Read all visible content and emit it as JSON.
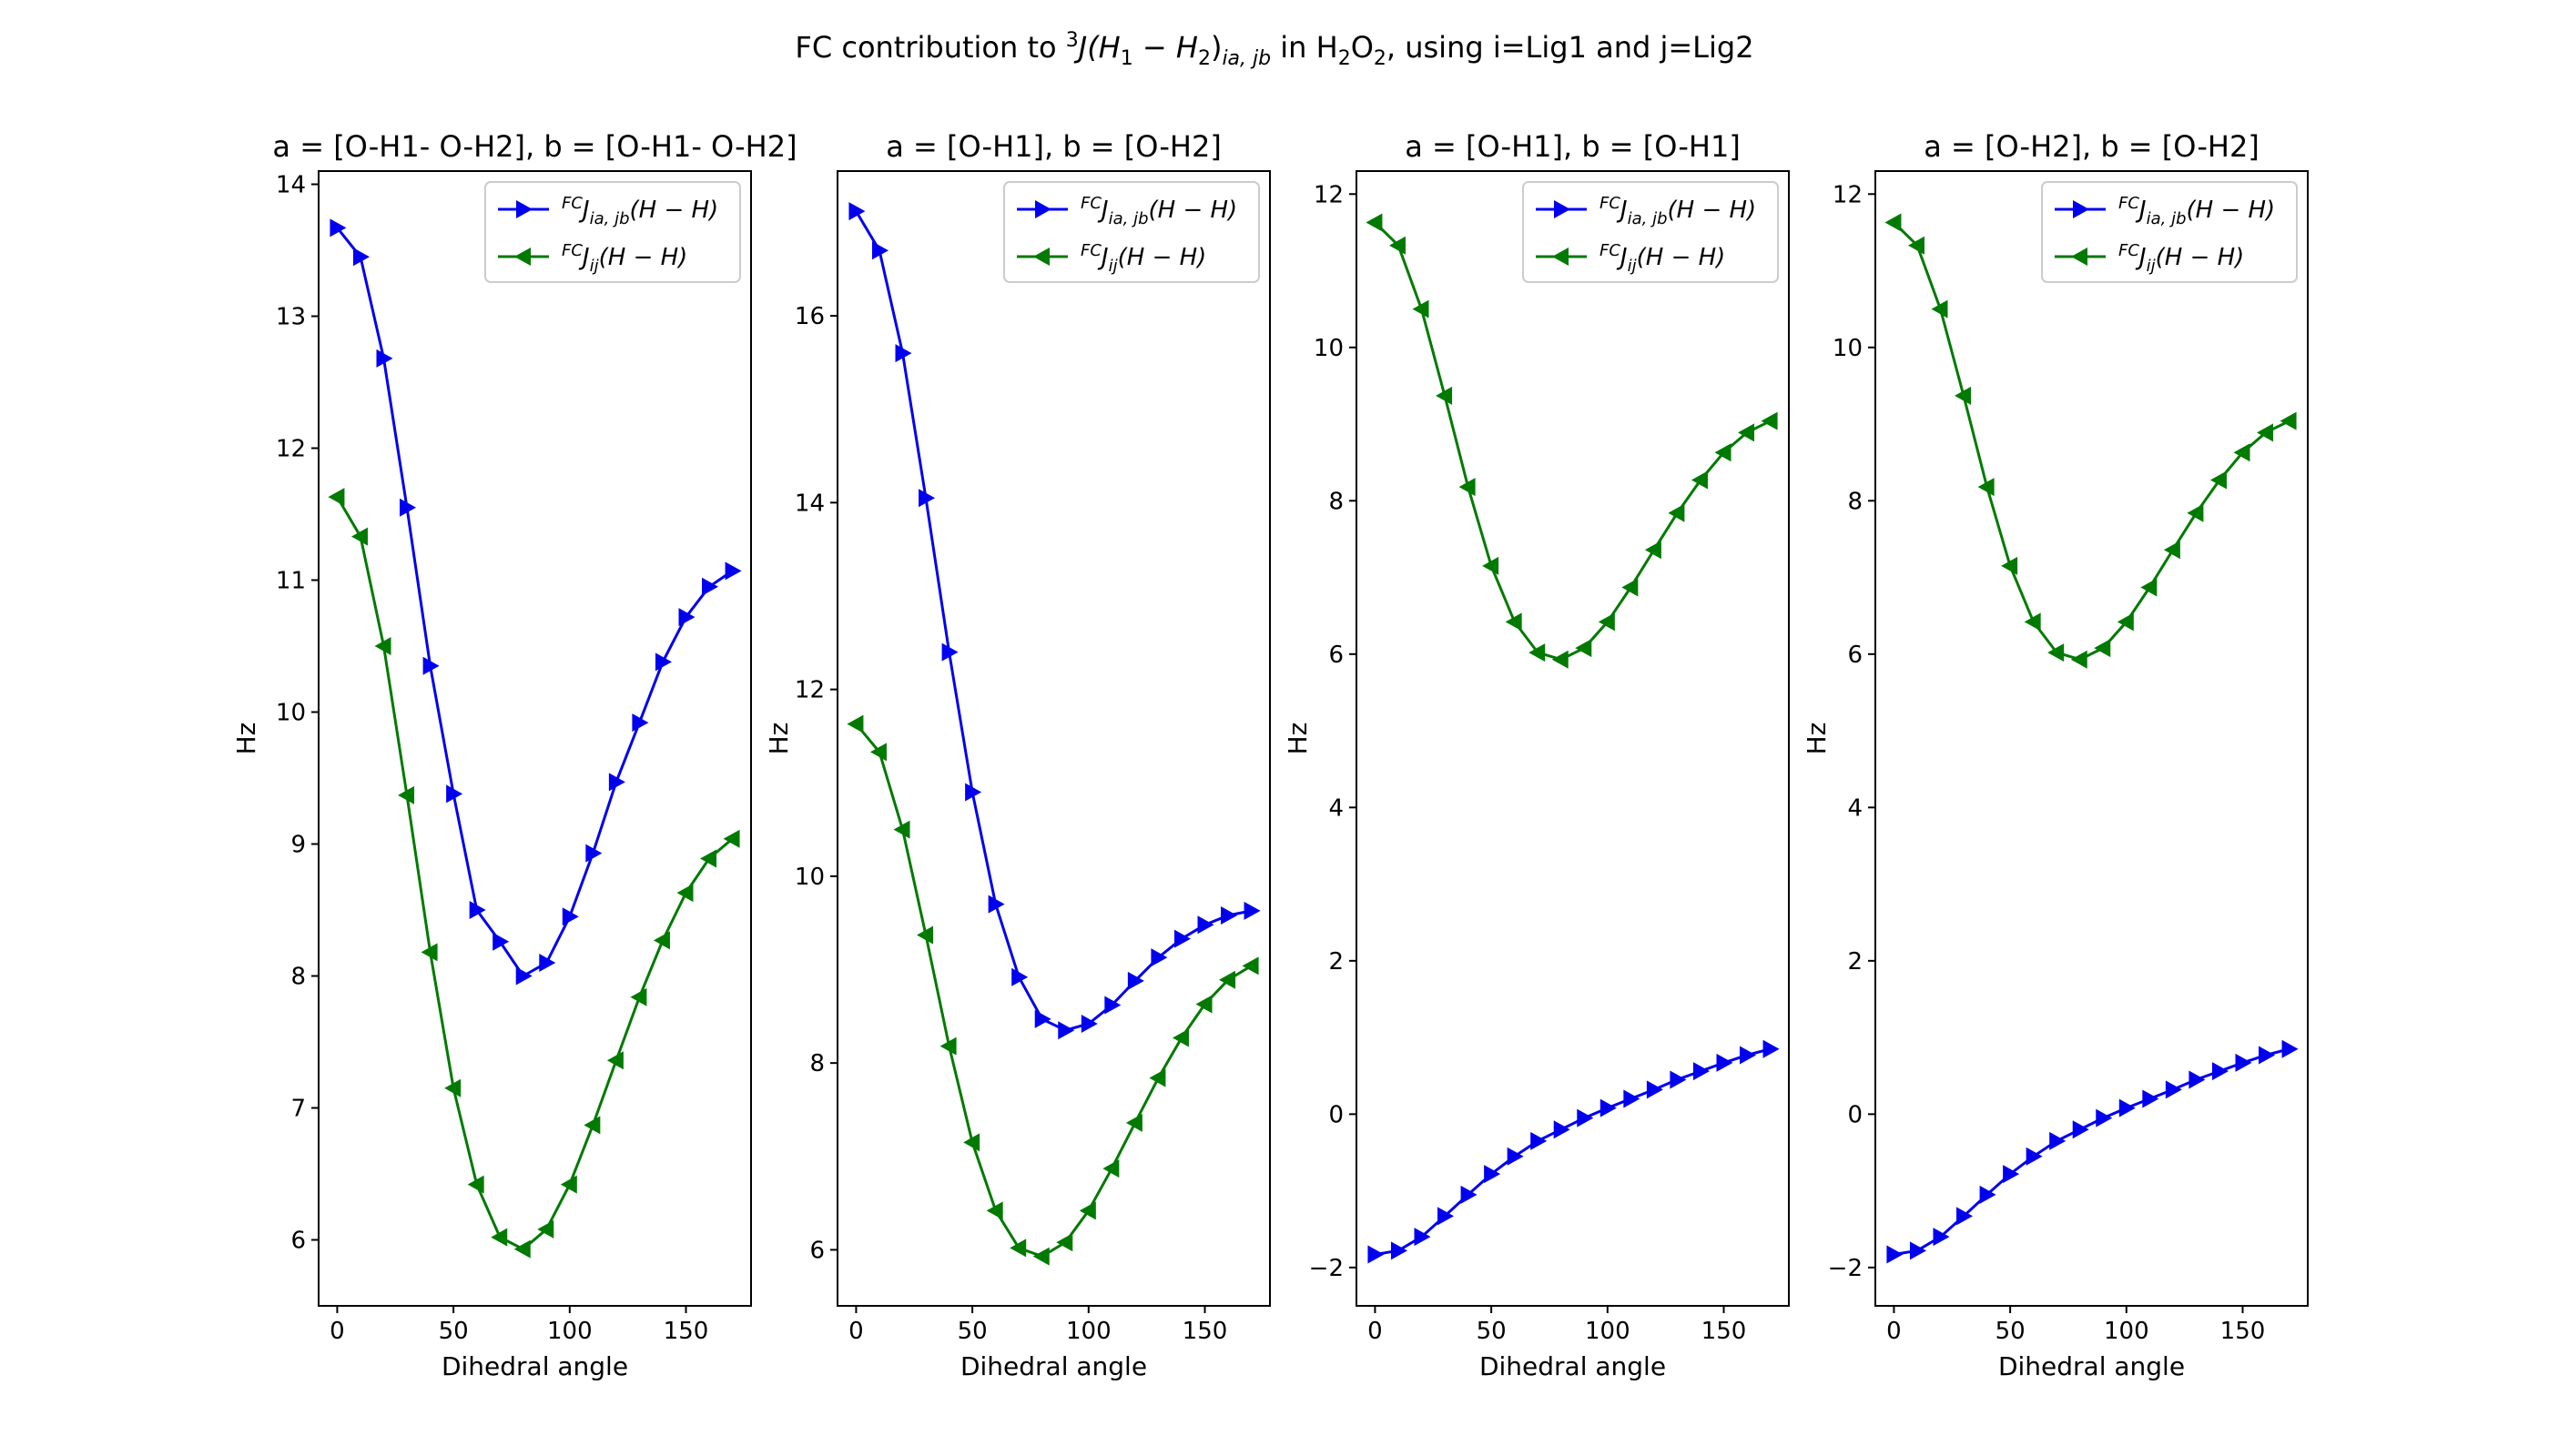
{
  "figure": {
    "title_prefix": "FC contribution to ",
    "title_mid": "J(H",
    "title_mid2": " − H",
    "title_mid3": ")",
    "title_sub_iajb": "ia, jb",
    "title_in": " in H",
    "title_o": "O",
    "title_suffix": ", using i=Lig1 and j=Lig2",
    "title_sup3": "3",
    "title_sub1": "1",
    "title_sub2": "2"
  },
  "legend_labels": {
    "prefix": "FC",
    "series1_main": "J",
    "series1_sub": "ia, jb",
    "series1_tail": "(H − H)",
    "series2_main": "J",
    "series2_sub": "ij",
    "series2_tail": "(H − H)"
  },
  "colors": {
    "series1": "#0000ee",
    "series2": "#007a00"
  },
  "chart_data": [
    {
      "type": "line",
      "title": "a = [O-H1- O-H2], b = [O-H1- O-H2]",
      "xlabel": "Dihedral angle",
      "ylabel": "Hz",
      "xlim": [
        -8,
        178
      ],
      "ylim": [
        5.5,
        14.1
      ],
      "xticks": [
        0,
        50,
        100,
        150
      ],
      "yticks": [
        6,
        7,
        8,
        9,
        10,
        11,
        12,
        13,
        14
      ],
      "legend": "top-right",
      "x": [
        0,
        10,
        20,
        30,
        40,
        50,
        60,
        70,
        80,
        90,
        100,
        110,
        120,
        130,
        140,
        150,
        160,
        170
      ],
      "series": [
        {
          "name": "FC J_{ia,jb}(H-H)",
          "marker": "triangle-right",
          "values": [
            13.67,
            13.45,
            12.68,
            11.55,
            10.35,
            9.38,
            8.5,
            8.26,
            8.0,
            8.1,
            8.45,
            8.93,
            9.47,
            9.92,
            10.38,
            10.72,
            10.95,
            11.07
          ]
        },
        {
          "name": "FC J_{ij}(H-H)",
          "marker": "triangle-left",
          "values": [
            11.63,
            11.33,
            10.5,
            9.37,
            8.18,
            7.15,
            6.42,
            6.02,
            5.93,
            6.08,
            6.42,
            6.87,
            7.36,
            7.84,
            8.27,
            8.63,
            8.89,
            9.04
          ]
        }
      ]
    },
    {
      "type": "line",
      "title": "a = [O-H1], b = [O-H2]",
      "xlabel": "Dihedral angle",
      "ylabel": "Hz",
      "xlim": [
        -8,
        178
      ],
      "ylim": [
        5.4,
        17.55
      ],
      "xticks": [
        0,
        50,
        100,
        150
      ],
      "yticks": [
        6,
        8,
        10,
        12,
        14,
        16
      ],
      "legend": "top-right",
      "x": [
        0,
        10,
        20,
        30,
        40,
        50,
        60,
        70,
        80,
        90,
        100,
        110,
        120,
        130,
        140,
        150,
        160,
        170
      ],
      "series": [
        {
          "name": "FC J_{ia,jb}(H-H)",
          "marker": "triangle-right",
          "values": [
            17.12,
            16.7,
            15.6,
            14.05,
            12.4,
            10.9,
            9.7,
            8.92,
            8.47,
            8.35,
            8.42,
            8.62,
            8.88,
            9.13,
            9.33,
            9.48,
            9.58,
            9.63
          ]
        },
        {
          "name": "FC J_{ij}(H-H)",
          "marker": "triangle-left",
          "values": [
            11.63,
            11.33,
            10.5,
            9.37,
            8.18,
            7.15,
            6.42,
            6.02,
            5.93,
            6.08,
            6.42,
            6.87,
            7.36,
            7.84,
            8.27,
            8.63,
            8.89,
            9.04
          ]
        }
      ]
    },
    {
      "type": "line",
      "title": "a = [O-H1], b = [O-H1]",
      "xlabel": "Dihedral angle",
      "ylabel": "Hz",
      "xlim": [
        -8,
        178
      ],
      "ylim": [
        -2.5,
        12.3
      ],
      "xticks": [
        0,
        50,
        100,
        150
      ],
      "yticks": [
        -2,
        0,
        2,
        4,
        6,
        8,
        10,
        12
      ],
      "legend": "top-right",
      "x": [
        0,
        10,
        20,
        30,
        40,
        50,
        60,
        70,
        80,
        90,
        100,
        110,
        120,
        130,
        140,
        150,
        160,
        170
      ],
      "series": [
        {
          "name": "FC J_{ia,jb}(H-H)",
          "marker": "triangle-right",
          "values": [
            -1.83,
            -1.78,
            -1.6,
            -1.33,
            -1.05,
            -0.78,
            -0.55,
            -0.35,
            -0.2,
            -0.05,
            0.08,
            0.2,
            0.32,
            0.45,
            0.56,
            0.67,
            0.77,
            0.85
          ]
        },
        {
          "name": "FC J_{ij}(H-H)",
          "marker": "triangle-left",
          "values": [
            11.63,
            11.33,
            10.5,
            9.37,
            8.18,
            7.15,
            6.42,
            6.02,
            5.93,
            6.08,
            6.42,
            6.87,
            7.36,
            7.84,
            8.27,
            8.63,
            8.89,
            9.04
          ]
        }
      ]
    },
    {
      "type": "line",
      "title": "a = [O-H2], b = [O-H2]",
      "xlabel": "Dihedral angle",
      "ylabel": "Hz",
      "xlim": [
        -8,
        178
      ],
      "ylim": [
        -2.5,
        12.3
      ],
      "xticks": [
        0,
        50,
        100,
        150
      ],
      "yticks": [
        -2,
        0,
        2,
        4,
        6,
        8,
        10,
        12
      ],
      "legend": "top-right",
      "x": [
        0,
        10,
        20,
        30,
        40,
        50,
        60,
        70,
        80,
        90,
        100,
        110,
        120,
        130,
        140,
        150,
        160,
        170
      ],
      "series": [
        {
          "name": "FC J_{ia,jb}(H-H)",
          "marker": "triangle-right",
          "values": [
            -1.83,
            -1.78,
            -1.6,
            -1.33,
            -1.05,
            -0.78,
            -0.55,
            -0.35,
            -0.2,
            -0.05,
            0.08,
            0.2,
            0.32,
            0.45,
            0.56,
            0.67,
            0.77,
            0.85
          ]
        },
        {
          "name": "FC J_{ij}(H-H)",
          "marker": "triangle-left",
          "values": [
            11.63,
            11.33,
            10.5,
            9.37,
            8.18,
            7.15,
            6.42,
            6.02,
            5.93,
            6.08,
            6.42,
            6.87,
            7.36,
            7.84,
            8.27,
            8.63,
            8.89,
            9.04
          ]
        }
      ]
    }
  ]
}
